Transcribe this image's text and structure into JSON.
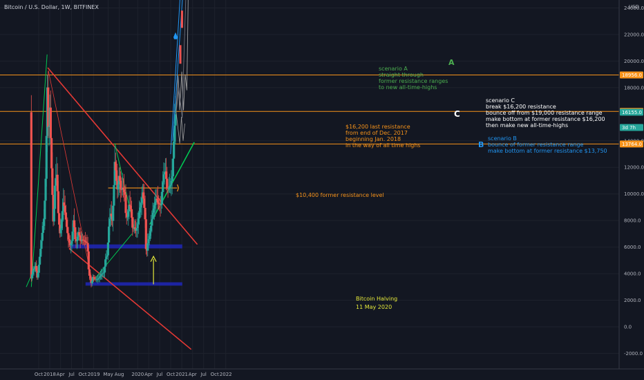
{
  "chart_data": {
    "type": "candlestick",
    "title": "Bitcoin / U.S. Dollar, 1W, BITFINEX",
    "currency": "USD",
    "ylim": [
      -2000,
      26000
    ],
    "y_ticks": [
      24000,
      22000,
      20000,
      18000,
      14000,
      12000,
      10000,
      8000,
      6000,
      4000,
      2000,
      0,
      -2000
    ],
    "y_tick_labels": [
      "24000.0",
      "22000.0",
      "20000.0",
      "18000.0",
      "14000.0",
      "12000.0",
      "10000.0",
      "8000.0",
      "6000.0",
      "4000.0",
      "2000.0",
      "0.0",
      "-2000.0"
    ],
    "x_ticks": [
      {
        "label": "Oct",
        "date": "2017-10-01"
      },
      {
        "label": "2018",
        "date": "2018-01-01"
      },
      {
        "label": "Apr",
        "date": "2018-04-01"
      },
      {
        "label": "Jul",
        "date": "2018-07-01"
      },
      {
        "label": "Oct",
        "date": "2018-10-01"
      },
      {
        "label": "2019",
        "date": "2019-01-01"
      },
      {
        "label": "May",
        "date": "2019-05-01"
      },
      {
        "label": "Aug",
        "date": "2019-08-01"
      },
      {
        "label": "2020",
        "date": "2020-01-01"
      },
      {
        "label": "Apr",
        "date": "2020-04-01"
      },
      {
        "label": "Jul",
        "date": "2020-07-01"
      },
      {
        "label": "Oct",
        "date": "2020-10-01"
      },
      {
        "label": "2021",
        "date": "2021-01-01"
      },
      {
        "label": "Apr",
        "date": "2021-04-01"
      },
      {
        "label": "Jul",
        "date": "2021-07-01"
      },
      {
        "label": "Oct",
        "date": "2021-10-01"
      },
      {
        "label": "2022",
        "date": "2022-01-01"
      }
    ],
    "price_badges": [
      {
        "value": 18956,
        "label": "18956.0",
        "color": "#f7931a"
      },
      {
        "value": 16213,
        "label": "16213.0",
        "color": "#f7931a"
      },
      {
        "value": 16155,
        "label": "16155.0",
        "color": "#26a69a"
      },
      {
        "value": 15000,
        "label": "3d 7h",
        "color": "#26a69a"
      },
      {
        "value": 13764,
        "label": "13764.0",
        "color": "#f7931a"
      }
    ],
    "horizontal_levels": [
      {
        "value": 18956,
        "color": "#f7931a"
      },
      {
        "value": 16213,
        "color": "#f7931a"
      },
      {
        "value": 13764,
        "color": "#f7931a"
      }
    ],
    "price_path": [
      [
        "2017-08-01",
        3500
      ],
      [
        "2017-08-20",
        4300
      ],
      [
        "2017-09-10",
        4600
      ],
      [
        "2017-09-24",
        3600
      ],
      [
        "2017-10-08",
        4800
      ],
      [
        "2017-10-22",
        6000
      ],
      [
        "2017-11-05",
        7200
      ],
      [
        "2017-11-19",
        8200
      ],
      [
        "2017-12-03",
        11500
      ],
      [
        "2017-12-17",
        18800
      ],
      [
        "2017-12-24",
        14000
      ],
      [
        "2018-01-07",
        16800
      ],
      [
        "2018-01-14",
        13500
      ],
      [
        "2018-01-21",
        11500
      ],
      [
        "2018-02-04",
        7500
      ],
      [
        "2018-02-18",
        11000
      ],
      [
        "2018-03-04",
        11500
      ],
      [
        "2018-03-18",
        8200
      ],
      [
        "2018-04-01",
        6900
      ],
      [
        "2018-04-15",
        8200
      ],
      [
        "2018-04-29",
        9500
      ],
      [
        "2018-05-13",
        8500
      ],
      [
        "2018-05-27",
        7400
      ],
      [
        "2018-06-10",
        6500
      ],
      [
        "2018-06-24",
        6100
      ],
      [
        "2018-07-08",
        6500
      ],
      [
        "2018-07-22",
        8200
      ],
      [
        "2018-08-05",
        6400
      ],
      [
        "2018-08-19",
        6500
      ],
      [
        "2018-09-02",
        7200
      ],
      [
        "2018-09-16",
        6400
      ],
      [
        "2018-10-01",
        6600
      ],
      [
        "2018-10-21",
        6450
      ],
      [
        "2018-11-11",
        6300
      ],
      [
        "2018-11-18",
        5500
      ],
      [
        "2018-11-25",
        4000
      ],
      [
        "2018-12-09",
        3600
      ],
      [
        "2018-12-16",
        3200
      ],
      [
        "2018-12-30",
        3800
      ],
      [
        "2019-01-13",
        3600
      ],
      [
        "2019-02-10",
        3600
      ],
      [
        "2019-02-24",
        3800
      ],
      [
        "2019-03-10",
        3950
      ],
      [
        "2019-03-31",
        4100
      ],
      [
        "2019-04-14",
        5200
      ],
      [
        "2019-04-28",
        5400
      ],
      [
        "2019-05-12",
        7800
      ],
      [
        "2019-05-26",
        8600
      ],
      [
        "2019-06-09",
        7900
      ],
      [
        "2019-06-23",
        11000
      ],
      [
        "2019-06-30",
        12800
      ],
      [
        "2019-07-07",
        11500
      ],
      [
        "2019-07-21",
        10200
      ],
      [
        "2019-08-04",
        11500
      ],
      [
        "2019-08-18",
        10200
      ],
      [
        "2019-09-01",
        10500
      ],
      [
        "2019-09-22",
        9900
      ],
      [
        "2019-09-29",
        8200
      ],
      [
        "2019-10-13",
        8300
      ],
      [
        "2019-10-27",
        9300
      ],
      [
        "2019-11-10",
        8800
      ],
      [
        "2019-11-24",
        7300
      ],
      [
        "2019-12-08",
        7500
      ],
      [
        "2019-12-22",
        7200
      ],
      [
        "2020-01-05",
        7800
      ],
      [
        "2020-01-19",
        8700
      ],
      [
        "2020-02-02",
        9400
      ],
      [
        "2020-02-16",
        10200
      ],
      [
        "2020-03-01",
        8800
      ],
      [
        "2020-03-08",
        7900
      ],
      [
        "2020-03-15",
        5300
      ],
      [
        "2020-03-29",
        6400
      ],
      [
        "2020-04-12",
        6900
      ],
      [
        "2020-04-26",
        7700
      ],
      [
        "2020-05-10",
        8700
      ],
      [
        "2020-05-24",
        9200
      ],
      [
        "2020-06-07",
        9700
      ],
      [
        "2020-06-21",
        9300
      ],
      [
        "2020-07-05",
        9200
      ],
      [
        "2020-07-19",
        9200
      ],
      [
        "2020-07-26",
        10400
      ],
      [
        "2020-08-09",
        11600
      ],
      [
        "2020-08-23",
        11700
      ],
      [
        "2020-09-06",
        10300
      ],
      [
        "2020-09-20",
        10500
      ],
      [
        "2020-10-04",
        10700
      ],
      [
        "2020-10-18",
        11400
      ],
      [
        "2020-10-25",
        13000
      ],
      [
        "2020-11-08",
        15400
      ],
      [
        "2020-11-15",
        16155
      ]
    ],
    "annotations": {
      "scenario_a": [
        "scenario A",
        "straight through",
        "former resistance ranges",
        "to new all-time-highs"
      ],
      "scenario_a_letter": "A",
      "scenario_b": [
        "scenario B",
        "bounce of former resistance range",
        "make bottom at former resistance $13,750"
      ],
      "scenario_b_letter": "B",
      "scenario_c": [
        "scenario C",
        "break $16,200 resistance",
        "bounce off from $19,000 resistance range",
        "make bottom at former resistance $16,200",
        "then make new all-time-highs"
      ],
      "scenario_c_letter": "C",
      "resistance_16200": [
        "$16,200 last resistance",
        "from end of Dec. 2017",
        "beginning Jan. 2018",
        "in the way of all time highs"
      ],
      "resistance_10400": "$10,400 former resistance level",
      "halving": [
        "Bitcoin Halving",
        "11 May 2020"
      ]
    },
    "colors": {
      "up": "#26a69a",
      "down": "#ef5350",
      "resistance": "#f7931a",
      "support_line": "#00c853",
      "channel": "#e53935",
      "zone": "#2027b8",
      "scenario_a": "#2196f3",
      "halving": "#e6ea3a",
      "text_green": "#4caf50",
      "text_blue": "#2196f3"
    }
  }
}
